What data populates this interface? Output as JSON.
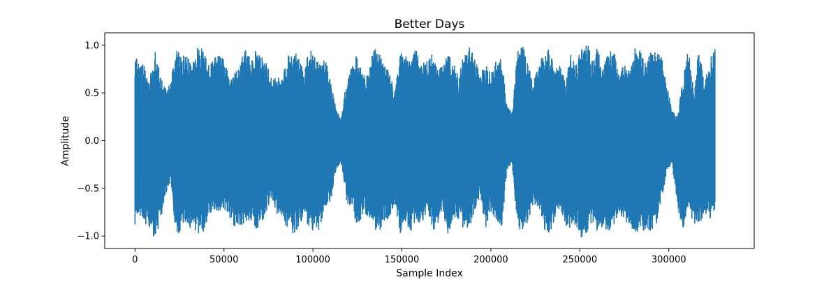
{
  "chart_data": {
    "type": "line",
    "title": "Better Days",
    "xlabel": "Sample Index",
    "ylabel": "Amplitude",
    "xlim": [
      -17000,
      348000
    ],
    "ylim": [
      -1.13,
      1.13
    ],
    "x_ticks": [
      0,
      50000,
      100000,
      150000,
      200000,
      250000,
      300000
    ],
    "x_tick_labels": [
      "0",
      "50000",
      "100000",
      "150000",
      "200000",
      "250000",
      "300000"
    ],
    "y_ticks": [
      1.0,
      0.5,
      0.0,
      -0.5,
      -1.0
    ],
    "y_tick_labels": [
      "1.0",
      "0.5",
      "0.0",
      "−0.5",
      "−1.0"
    ],
    "grid": false,
    "legend": "none",
    "sample_count": 331000,
    "series": [
      {
        "color": "#1f77b4",
        "envelope_x": [
          0,
          2000,
          5000,
          8000,
          11000,
          14000,
          17000,
          20000,
          23000,
          26000,
          29000,
          32000,
          35000,
          38000,
          41000,
          44000,
          47000,
          50000,
          53000,
          56000,
          59000,
          62000,
          65000,
          68000,
          71000,
          74000,
          77000,
          80000,
          83000,
          86000,
          89000,
          92000,
          95000,
          98000,
          101000,
          104000,
          107000,
          110000,
          113000,
          116000,
          119000,
          122000,
          125000,
          128000,
          131000,
          134000,
          137000,
          140000,
          143000,
          146000,
          149000,
          152000,
          155000,
          158000,
          161000,
          164000,
          167000,
          170000,
          173000,
          176000,
          179000,
          182000,
          185000,
          188000,
          191000,
          194000,
          197000,
          200000,
          203000,
          206000,
          209000,
          212000,
          215000,
          218000,
          221000,
          224000,
          227000,
          230000,
          233000,
          236000,
          239000,
          242000,
          245000,
          248000,
          251000,
          254000,
          257000,
          260000,
          263000,
          266000,
          269000,
          272000,
          275000,
          278000,
          281000,
          284000,
          287000,
          290000,
          293000,
          296000,
          299000,
          302000,
          305000,
          308000,
          311000,
          314000,
          317000,
          320000,
          323000,
          326000,
          329000,
          331000
        ],
        "envelope_max": [
          0.93,
          0.82,
          0.8,
          0.62,
          0.98,
          0.71,
          0.55,
          0.61,
          0.97,
          0.93,
          0.91,
          0.78,
          0.97,
          0.99,
          0.8,
          0.87,
          0.9,
          0.85,
          0.67,
          0.72,
          0.82,
          0.98,
          0.85,
          0.96,
          0.88,
          0.84,
          0.63,
          0.69,
          0.69,
          0.9,
          0.92,
          0.91,
          0.72,
          0.99,
          0.9,
          0.81,
          0.87,
          0.65,
          0.33,
          0.25,
          0.67,
          0.78,
          0.96,
          0.74,
          0.69,
          0.96,
          0.97,
          0.8,
          0.72,
          0.52,
          0.97,
          0.88,
          0.97,
          0.95,
          0.85,
          0.86,
          0.98,
          0.77,
          0.79,
          0.96,
          0.82,
          0.68,
          0.96,
          0.99,
          0.87,
          0.71,
          0.8,
          0.71,
          0.86,
          0.88,
          0.38,
          0.31,
          0.97,
          0.99,
          0.82,
          0.63,
          0.79,
          0.97,
          0.97,
          0.76,
          0.83,
          0.62,
          0.91,
          0.82,
          0.99,
          1.04,
          0.85,
          0.98,
          0.74,
          0.97,
          0.95,
          0.73,
          0.81,
          0.76,
          0.97,
          0.97,
          0.8,
          0.95,
          0.92,
          0.89,
          0.57,
          0.32,
          0.25,
          0.68,
          0.97,
          0.54,
          0.98,
          0.6,
          0.86,
          0.97,
          0.49
        ],
        "envelope_min": [
          -0.91,
          -0.78,
          -0.85,
          -0.94,
          -1.02,
          -0.9,
          -0.6,
          -0.42,
          -0.99,
          -0.95,
          -0.85,
          -0.96,
          -0.97,
          -0.98,
          -0.83,
          -0.73,
          -0.74,
          -0.72,
          -0.81,
          -0.91,
          -0.95,
          -0.84,
          -0.86,
          -0.99,
          -0.91,
          -0.74,
          -0.59,
          -0.82,
          -0.83,
          -0.94,
          -1.01,
          -0.91,
          -0.78,
          -0.95,
          -0.99,
          -0.92,
          -0.7,
          -0.66,
          -0.3,
          -0.25,
          -0.66,
          -0.71,
          -0.91,
          -0.78,
          -0.79,
          -0.95,
          -0.99,
          -0.84,
          -0.82,
          -0.68,
          -0.98,
          -0.87,
          -0.97,
          -0.83,
          -0.9,
          -0.73,
          -0.97,
          -0.89,
          -0.76,
          -0.99,
          -0.83,
          -0.82,
          -0.97,
          -0.95,
          -0.73,
          -0.59,
          -0.92,
          -0.75,
          -0.84,
          -0.96,
          -0.31,
          -0.24,
          -0.95,
          -0.98,
          -0.84,
          -0.67,
          -0.72,
          -0.95,
          -0.99,
          -0.84,
          -0.69,
          -0.95,
          -0.91,
          -0.89,
          -1.04,
          -0.98,
          -0.84,
          -0.96,
          -0.91,
          -0.95,
          -0.98,
          -0.78,
          -0.87,
          -0.93,
          -0.99,
          -0.97,
          -0.93,
          -0.96,
          -0.91,
          -0.62,
          -0.31,
          -0.28,
          -0.69,
          -0.98,
          -0.72,
          -0.94,
          -0.88,
          -0.77,
          -0.83,
          -0.72
        ]
      }
    ]
  }
}
